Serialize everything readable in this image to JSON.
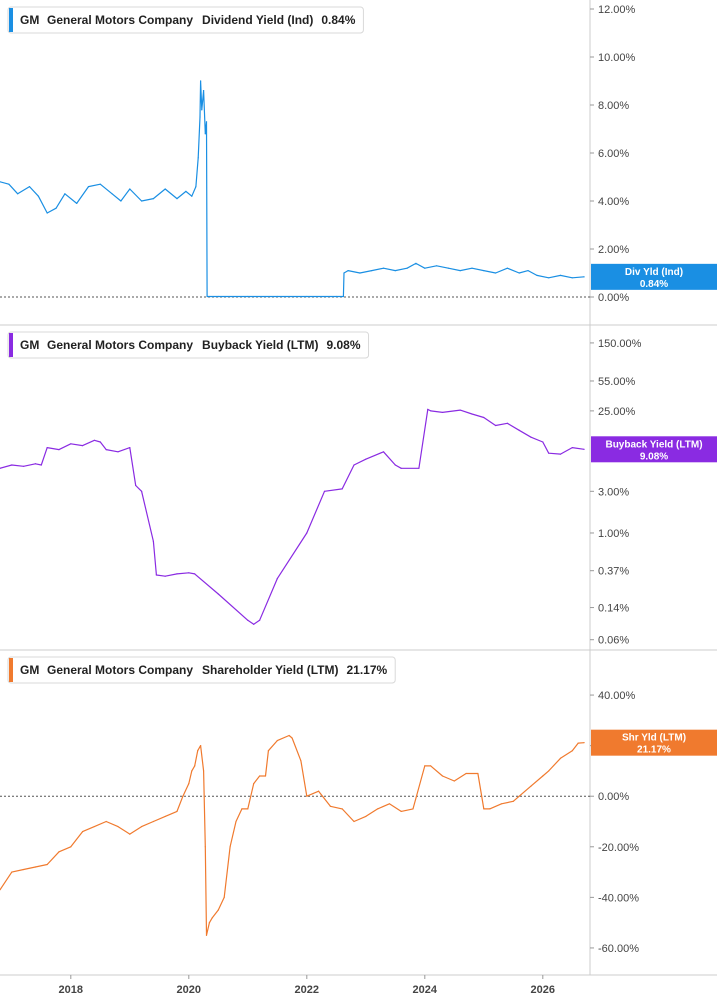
{
  "chart_data": [
    {
      "type": "line",
      "ticker": "GM",
      "company": "General Motors Company",
      "metric": "Dividend Yield (Ind)",
      "latest_value": "0.84%",
      "badge_label": "Div Yld (Ind)",
      "badge_value": "0.84%",
      "color": "#1a8fe3",
      "y_scale": "linear",
      "ylim": [
        0,
        12
      ],
      "yticks": [
        0,
        2,
        4,
        6,
        8,
        10,
        12
      ],
      "ytick_labels": [
        "0.00%",
        "2.00%",
        "4.00%",
        "6.00%",
        "8.00%",
        "10.00%",
        "12.00%"
      ],
      "zero_line": true,
      "series": [
        {
          "x": [
            2016.8,
            2016.95,
            2017.1,
            2017.3,
            2017.45,
            2017.6,
            2017.75,
            2017.9,
            2018.1,
            2018.3,
            2018.5,
            2018.7,
            2018.85,
            2019.0,
            2019.2,
            2019.4,
            2019.6,
            2019.8,
            2019.95,
            2020.05,
            2020.12,
            2020.16,
            2020.19,
            2020.2,
            2020.22,
            2020.25,
            2020.28,
            2020.3,
            2020.31,
            2020.5,
            2021.0,
            2021.5,
            2022.0,
            2022.5,
            2022.62,
            2022.63,
            2022.7,
            2022.9,
            2023.1,
            2023.3,
            2023.5,
            2023.7,
            2023.85,
            2024.0,
            2024.2,
            2024.4,
            2024.6,
            2024.8,
            2025.0,
            2025.2,
            2025.4,
            2025.6,
            2025.75,
            2025.9,
            2026.1,
            2026.3,
            2026.5,
            2026.7
          ],
          "y": [
            4.8,
            4.7,
            4.3,
            4.6,
            4.2,
            3.5,
            3.7,
            4.3,
            3.9,
            4.6,
            4.7,
            4.3,
            4.0,
            4.5,
            4.0,
            4.1,
            4.5,
            4.1,
            4.4,
            4.2,
            4.6,
            5.8,
            7.5,
            9.0,
            7.8,
            8.6,
            6.8,
            7.3,
            0.02,
            0.02,
            0.02,
            0.02,
            0.02,
            0.02,
            0.02,
            1.0,
            1.1,
            1.0,
            1.1,
            1.2,
            1.1,
            1.2,
            1.4,
            1.2,
            1.3,
            1.2,
            1.1,
            1.2,
            1.1,
            1.0,
            1.2,
            1.0,
            1.1,
            0.9,
            0.8,
            0.9,
            0.8,
            0.84
          ]
        }
      ]
    },
    {
      "type": "line",
      "ticker": "GM",
      "company": "General Motors Company",
      "metric": "Buyback Yield (LTM)",
      "latest_value": "9.08%",
      "badge_label": "Buyback Yield (LTM)",
      "badge_value": "9.08%",
      "color": "#8a2be2",
      "y_scale": "log",
      "ylim": [
        0.055,
        180
      ],
      "yticks": [
        0.06,
        0.14,
        0.37,
        1.0,
        3.0,
        25.0,
        55.0,
        150.0
      ],
      "ytick_labels": [
        "0.06%",
        "0.14%",
        "0.37%",
        "1.00%",
        "3.00%",
        "25.00%",
        "55.00%",
        "150.00%"
      ],
      "series": [
        {
          "x": [
            2016.8,
            2017.0,
            2017.2,
            2017.4,
            2017.5,
            2017.6,
            2017.8,
            2018.0,
            2018.2,
            2018.4,
            2018.5,
            2018.6,
            2018.8,
            2019.0,
            2019.1,
            2019.2,
            2019.4,
            2019.45,
            2019.6,
            2019.8,
            2020.0,
            2020.1,
            2020.5,
            2021.0,
            2021.1,
            2021.2,
            2021.5,
            2022.0,
            2022.3,
            2022.6,
            2022.8,
            2023.0,
            2023.3,
            2023.5,
            2023.6,
            2023.9,
            2024.05,
            2024.1,
            2024.3,
            2024.6,
            2024.8,
            2025.0,
            2025.2,
            2025.4,
            2025.6,
            2025.8,
            2026.0,
            2026.1,
            2026.3,
            2026.5,
            2026.7
          ],
          "y": [
            5.5,
            6.0,
            5.8,
            6.2,
            6.0,
            9.5,
            9.0,
            10.5,
            10.0,
            11.5,
            11.0,
            9.0,
            8.5,
            9.5,
            3.5,
            3.0,
            0.8,
            0.33,
            0.32,
            0.34,
            0.35,
            0.34,
            0.2,
            0.1,
            0.09,
            0.1,
            0.3,
            1.0,
            3.0,
            3.2,
            6.0,
            7.0,
            8.5,
            6.0,
            5.5,
            5.5,
            26.0,
            25.0,
            24.0,
            25.5,
            23.0,
            21.0,
            17.0,
            18.0,
            15.0,
            12.5,
            11.0,
            8.2,
            8.0,
            9.5,
            9.08
          ]
        }
      ]
    },
    {
      "type": "line",
      "ticker": "GM",
      "company": "General Motors Company",
      "metric": "Shareholder Yield (LTM)",
      "latest_value": "21.17%",
      "badge_label": "Shr Yld (LTM)",
      "badge_value": "21.17%",
      "color": "#f07a2e",
      "y_scale": "linear",
      "ylim": [
        -62,
        42
      ],
      "yticks": [
        -60,
        -40,
        -20,
        0,
        20,
        40
      ],
      "ytick_labels": [
        "-60.00%",
        "-40.00%",
        "-20.00%",
        "0.00%",
        "20.00%",
        "40.00%"
      ],
      "zero_line": true,
      "series": [
        {
          "x": [
            2016.8,
            2017.0,
            2017.2,
            2017.4,
            2017.6,
            2017.8,
            2018.0,
            2018.2,
            2018.4,
            2018.6,
            2018.8,
            2019.0,
            2019.2,
            2019.4,
            2019.6,
            2019.8,
            2019.9,
            2020.0,
            2020.05,
            2020.1,
            2020.15,
            2020.2,
            2020.25,
            2020.28,
            2020.3,
            2020.35,
            2020.4,
            2020.5,
            2020.6,
            2020.7,
            2020.8,
            2020.9,
            2021.0,
            2021.1,
            2021.2,
            2021.3,
            2021.35,
            2021.5,
            2021.7,
            2021.75,
            2021.9,
            2022.0,
            2022.2,
            2022.4,
            2022.6,
            2022.8,
            2023.0,
            2023.2,
            2023.4,
            2023.6,
            2023.8,
            2024.0,
            2024.1,
            2024.3,
            2024.5,
            2024.7,
            2024.9,
            2025.0,
            2025.1,
            2025.3,
            2025.5,
            2025.6,
            2025.8,
            2026.0,
            2026.1,
            2026.3,
            2026.5,
            2026.6,
            2026.7
          ],
          "y": [
            -37,
            -30,
            -29,
            -28,
            -27,
            -22,
            -20,
            -14,
            -12,
            -10,
            -12,
            -15,
            -12,
            -10,
            -8,
            -6,
            0,
            5,
            10,
            12,
            18,
            20,
            10,
            -20,
            -55,
            -50,
            -48,
            -45,
            -40,
            -20,
            -10,
            -5,
            -5,
            5,
            8,
            8,
            18,
            22,
            24,
            23,
            14,
            0,
            2,
            -4,
            -5,
            -10,
            -8,
            -5,
            -3,
            -6,
            -5,
            12,
            12,
            8,
            6,
            9,
            9,
            -5,
            -5,
            -3,
            -2,
            0,
            4,
            8,
            10,
            15,
            18,
            21,
            21.17
          ]
        }
      ]
    }
  ],
  "x_axis": {
    "xlim": [
      2016.8,
      2026.8
    ],
    "ticks": [
      2018,
      2020,
      2022,
      2024,
      2026
    ],
    "labels": [
      "2018",
      "2020",
      "2022",
      "2024",
      "2026"
    ]
  }
}
